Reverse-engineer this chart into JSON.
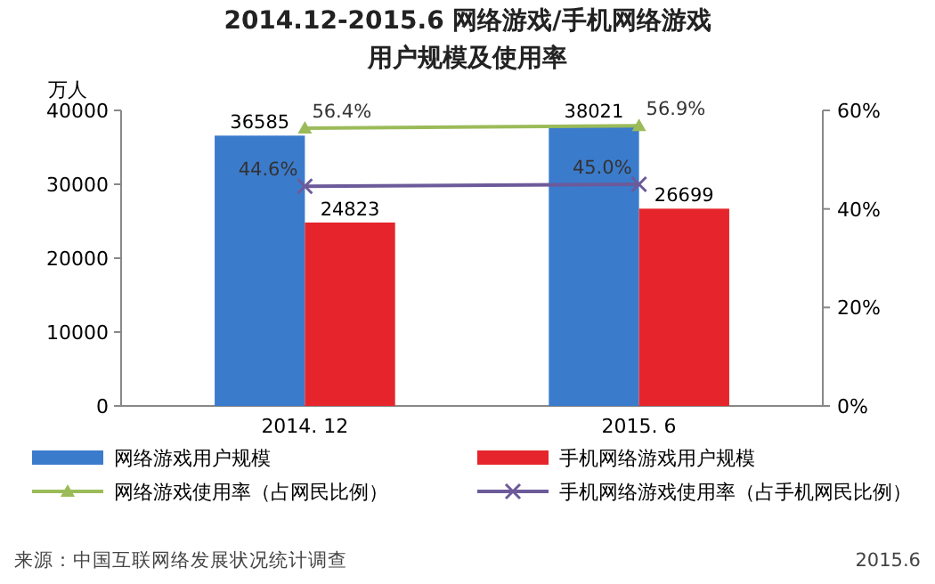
{
  "chart_data": {
    "type": "bar",
    "title": "2014.12-2015.6 网络游戏/手机网络游戏",
    "subtitle": "用户规模及使用率",
    "ylabel": "万人",
    "categories": [
      "2014. 12",
      "2015. 6"
    ],
    "series": [
      {
        "name": "网络游戏用户规模",
        "color": "#3b7bcc",
        "values": [
          36585,
          38021
        ],
        "value_labels": [
          "36585",
          "38021"
        ]
      },
      {
        "name": "手机网络游戏用户规模",
        "color": "#e5252b",
        "values": [
          24823,
          26699
        ],
        "value_labels": [
          "24823",
          "26699"
        ]
      },
      {
        "name": "网络游戏使用率（占网民比例）",
        "type": "line",
        "axis": "y2",
        "marker": "triangle",
        "color": "#9bbb59",
        "values": [
          56.4,
          56.9
        ],
        "value_labels": [
          "56.4%",
          "56.9%"
        ]
      },
      {
        "name": "手机网络游戏使用率（占手机网民比例）",
        "type": "line",
        "axis": "y2",
        "marker": "cross",
        "color": "#6c5a9a",
        "values": [
          44.6,
          45.0
        ],
        "value_labels": [
          "44.6%",
          "45.0%"
        ]
      }
    ],
    "ylim": [
      0,
      40000
    ],
    "yticks": [
      0,
      10000,
      20000,
      30000,
      40000
    ],
    "y2lim": [
      0,
      60
    ],
    "y2ticks": [
      {
        "value": 0,
        "label": "0%"
      },
      {
        "value": 20,
        "label": "20%"
      },
      {
        "value": 40,
        "label": "40%"
      },
      {
        "value": 60,
        "label": "60%"
      }
    ],
    "legend": "bottom",
    "annotations": [
      "来源：中国互联网络发展状况统计调查",
      "2015.6"
    ]
  }
}
